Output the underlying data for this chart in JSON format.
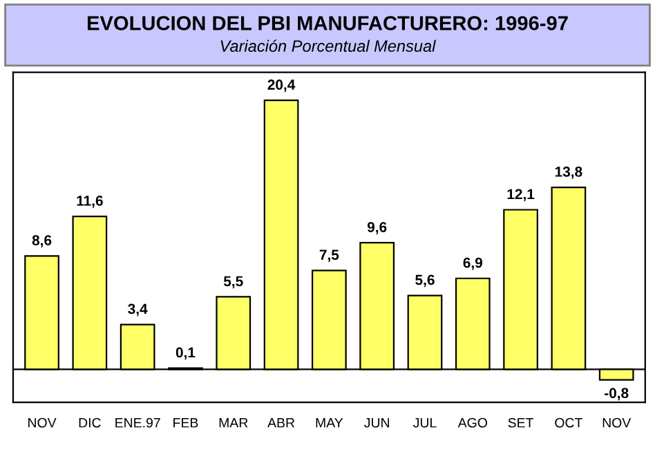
{
  "chart_data": {
    "type": "bar",
    "title": "EVOLUCION DEL PBI MANUFACTURERO: 1996-97",
    "subtitle": "Variación Porcentual Mensual",
    "categories": [
      "NOV",
      "DIC",
      "ENE.97",
      "FEB",
      "MAR",
      "ABR",
      "MAY",
      "JUN",
      "JUL",
      "AGO",
      "SET",
      "OCT",
      "NOV"
    ],
    "values": [
      8.6,
      11.6,
      3.4,
      0.1,
      5.5,
      20.4,
      7.5,
      9.6,
      5.6,
      6.9,
      12.1,
      13.8,
      -0.8
    ],
    "value_labels": [
      "8,6",
      "11,6",
      "3,4",
      "0,1",
      "5,5",
      "20,4",
      "7,5",
      "9,6",
      "5,6",
      "6,9",
      "12,1",
      "13,8",
      "-0,8"
    ],
    "color": "#ffff66"
  }
}
